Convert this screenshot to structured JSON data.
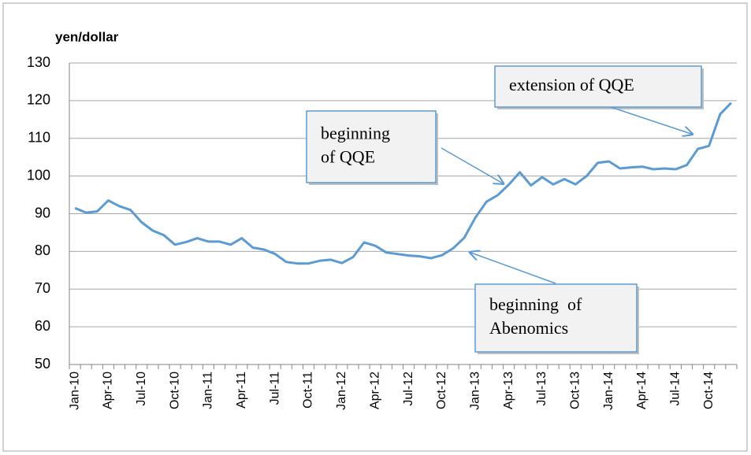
{
  "chart_data": {
    "type": "line",
    "y_axis_label": "yen/dollar",
    "categories": [
      "Jan-10",
      null,
      null,
      "Apr-10",
      null,
      null,
      "Jul-10",
      null,
      null,
      "Oct-10",
      null,
      null,
      "Jan-11",
      null,
      null,
      "Apr-11",
      null,
      null,
      "Jul-11",
      null,
      null,
      "Oct-11",
      null,
      null,
      "Jan-12",
      null,
      null,
      "Apr-12",
      null,
      null,
      "Jul-12",
      null,
      null,
      "Oct-12",
      null,
      null,
      "Jan-13",
      null,
      null,
      "Apr-13",
      null,
      null,
      "Jul-13",
      null,
      null,
      "Oct-13",
      null,
      null,
      "Jan-14",
      null,
      null,
      "Apr-14",
      null,
      null,
      "Jul-14",
      null,
      null,
      "Oct-14",
      null,
      null
    ],
    "values": [
      91.5,
      90.3,
      90.6,
      93.5,
      92,
      91,
      87.7,
      85.5,
      84.3,
      81.8,
      82.5,
      83.5,
      82.6,
      82.6,
      81.8,
      83.5,
      81,
      80.5,
      79.3,
      77.2,
      76.8,
      76.8,
      77.5,
      77.8,
      76.9,
      78.5,
      82.4,
      81.5,
      79.7,
      79.3,
      78.9,
      78.7,
      78.2,
      79,
      80.8,
      83.6,
      89,
      93.2,
      94.9,
      97.7,
      101,
      97.5,
      99.7,
      97.8,
      99.2,
      97.8,
      100,
      103.5,
      103.9,
      102,
      102.3,
      102.5,
      101.8,
      102,
      101.8,
      102.9,
      107.2,
      108,
      116.4,
      119.4
    ],
    "color": "#5b9bd5",
    "ylim": [
      50,
      130
    ],
    "yticks": [
      50,
      60,
      70,
      80,
      90,
      100,
      110,
      120,
      130
    ],
    "grid": true,
    "annotations": [
      {
        "lines": [
          "extension of QQE"
        ]
      },
      {
        "lines": [
          "beginning",
          "of QQE"
        ]
      },
      {
        "lines": [
          "beginning  of",
          "Abenomics"
        ]
      }
    ]
  }
}
